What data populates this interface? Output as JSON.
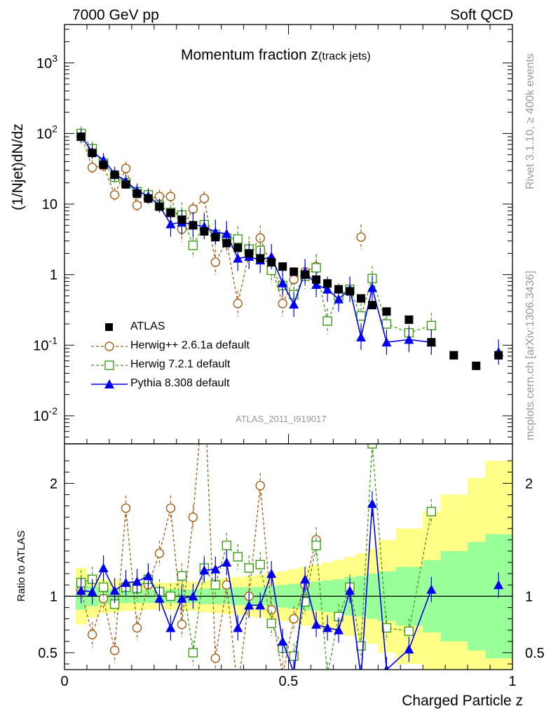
{
  "header": {
    "left": "7000 GeV pp",
    "right": "Soft QCD"
  },
  "title": {
    "main": "Momentum fraction z",
    "sub": "(track jets)"
  },
  "side_labels": {
    "rivet": "Rivet 3.1.10, ≥ 400k events",
    "site": "mcplots.cern.ch [arXiv:1306.3436]"
  },
  "watermark": "ATLAS_2011_I919017",
  "axes": {
    "ylabel_main": "(1/Njet)dN/dz",
    "ylabel_ratio": "Ratio to ATLAS",
    "xlabel": "Charged Particle z"
  },
  "colors": {
    "atlas": "#000000",
    "herwigpp": "#a35c14",
    "herwig7": "#3f9a1a",
    "pythia": "#0000ee",
    "band_outer": "#ffff88",
    "band_inner": "#99ff99"
  },
  "legend": [
    {
      "key": "atlas",
      "label": "ATLAS"
    },
    {
      "key": "herwigpp",
      "label": "Herwig++ 2.6.1a default"
    },
    {
      "key": "herwig7",
      "label": "Herwig 7.2.1 default"
    },
    {
      "key": "pythia",
      "label": "Pythia 8.308 default"
    }
  ],
  "chart_data": [
    {
      "type": "scatter",
      "panel": "main",
      "title": "Momentum fraction z (track jets)",
      "xlabel": "Charged Particle z",
      "ylabel": "(1/Njet)dN/dz",
      "xlim": [
        0,
        1
      ],
      "ylim": [
        0.004,
        3500
      ],
      "yscale": "log",
      "xticks": [
        0,
        0.5,
        1
      ],
      "xtick_labels": [
        "0",
        "0.5",
        "1"
      ],
      "ytick_labels": [
        "10^-2",
        "10^-1",
        "1",
        "10",
        "10^2",
        "10^3"
      ],
      "x": [
        0.037,
        0.062,
        0.087,
        0.112,
        0.137,
        0.162,
        0.187,
        0.212,
        0.237,
        0.262,
        0.287,
        0.312,
        0.337,
        0.362,
        0.387,
        0.412,
        0.437,
        0.462,
        0.487,
        0.512,
        0.537,
        0.562,
        0.587,
        0.612,
        0.637,
        0.662,
        0.687,
        0.719,
        0.769,
        0.819,
        0.869,
        0.919,
        0.969
      ],
      "series": [
        {
          "name": "ATLAS",
          "values": [
            90,
            53,
            36,
            26,
            19,
            14,
            12,
            9.2,
            7.5,
            6.0,
            5.0,
            4.1,
            3.4,
            2.8,
            2.4,
            2.0,
            1.7,
            1.5,
            1.3,
            1.1,
            1.0,
            0.85,
            0.75,
            0.62,
            0.58,
            0.46,
            0.37,
            0.3,
            0.23,
            0.11,
            0.072,
            0.051,
            0.072
          ]
        },
        {
          "name": "Herwig++ 2.6.1a default",
          "values": [
            95,
            33,
            35,
            13.5,
            32,
            9.6,
            12,
            12.8,
            12.8,
            4.4,
            8.5,
            12,
            1.5,
            3.0,
            0.39,
            2.0,
            3.3,
            1.3,
            0.39,
            0.85,
            1.1,
            1.3,
            null,
            null,
            null,
            3.4,
            null,
            null,
            null,
            null,
            null,
            null,
            null
          ]
        },
        {
          "name": "Herwig 7.2.1 default",
          "values": [
            100,
            61,
            38,
            24,
            20,
            15,
            13.5,
            9.6,
            7.6,
            7.0,
            2.6,
            5.1,
            3.7,
            3.3,
            3.2,
            2.3,
            2.2,
            1.15,
            0.7,
            0.52,
            0.95,
            1.25,
            0.22,
            0.5,
            0.62,
            0.26,
            0.88,
            0.2,
            0.15,
            0.19,
            null,
            null,
            null
          ]
        },
        {
          "name": "Pythia 8.308 default",
          "values": [
            92,
            55,
            42,
            27,
            21,
            15.5,
            13,
            9.5,
            5.2,
            5.5,
            5.1,
            4.8,
            4.0,
            3.8,
            1.7,
            1.8,
            1.6,
            1.8,
            0.76,
            0.38,
            1.1,
            0.72,
            0.62,
            0.45,
            0.62,
            0.13,
            0.65,
            0.11,
            0.12,
            0.11,
            null,
            null,
            0.08
          ]
        }
      ]
    },
    {
      "type": "line",
      "panel": "ratio",
      "ylabel": "Ratio to ATLAS",
      "xlabel": "Charged Particle z",
      "xlim": [
        0,
        1
      ],
      "ylim": [
        0.35,
        2.35
      ],
      "yticks": [
        0.5,
        1,
        2
      ],
      "ytick_labels": [
        "0.5",
        "1",
        "2"
      ],
      "x": [
        0.037,
        0.062,
        0.087,
        0.112,
        0.137,
        0.162,
        0.187,
        0.212,
        0.237,
        0.262,
        0.287,
        0.312,
        0.337,
        0.362,
        0.387,
        0.412,
        0.437,
        0.462,
        0.487,
        0.512,
        0.537,
        0.562,
        0.587,
        0.612,
        0.637,
        0.662,
        0.687,
        0.719,
        0.769,
        0.819,
        0.869,
        0.919,
        0.969
      ],
      "series": [
        {
          "name": "Herwig++ 2.6.1a default",
          "values": [
            1.05,
            0.66,
            0.98,
            0.52,
            1.78,
            0.72,
            1.1,
            1.38,
            1.78,
            0.75,
            1.7,
            2.9,
            0.45,
            1.1,
            0.16,
            1.0,
            1.98,
            0.88,
            0.3,
            0.8,
            1.1,
            1.5,
            null,
            null,
            null,
            null,
            null,
            null,
            null,
            null,
            null,
            null,
            null
          ]
        },
        {
          "name": "Herwig 7.2.1 default",
          "values": [
            1.12,
            1.15,
            1.08,
            0.93,
            1.08,
            1.07,
            1.15,
            1.04,
            1.0,
            1.18,
            0.5,
            1.25,
            1.1,
            1.45,
            1.35,
            1.25,
            1.28,
            0.76,
            0.54,
            0.47,
            0.95,
            1.45,
            0.3,
            0.82,
            1.08,
            0.56,
            2.35,
            0.72,
            0.69,
            1.75,
            null,
            null,
            null
          ]
        },
        {
          "name": "Pythia 8.308 default",
          "values": [
            1.05,
            1.04,
            1.25,
            1.05,
            1.12,
            1.13,
            1.18,
            0.98,
            0.72,
            0.98,
            1.0,
            1.23,
            1.24,
            1.3,
            0.72,
            0.92,
            0.92,
            1.2,
            0.6,
            0.32,
            1.15,
            0.75,
            0.72,
            0.7,
            1.05,
            0.28,
            1.82,
            0.35,
            0.53,
            1.06,
            null,
            null,
            1.1
          ]
        }
      ],
      "bands": {
        "x_edges": [
          0.025,
          0.05,
          0.075,
          0.1,
          0.125,
          0.15,
          0.175,
          0.2,
          0.225,
          0.25,
          0.275,
          0.3,
          0.325,
          0.35,
          0.375,
          0.4,
          0.425,
          0.45,
          0.475,
          0.5,
          0.525,
          0.55,
          0.575,
          0.6,
          0.625,
          0.65,
          0.675,
          0.7,
          0.74,
          0.8,
          0.84,
          0.9,
          0.94,
          1.0
        ],
        "inner": [
          0.12,
          0.09,
          0.07,
          0.06,
          0.06,
          0.06,
          0.06,
          0.06,
          0.06,
          0.06,
          0.06,
          0.07,
          0.07,
          0.07,
          0.08,
          0.08,
          0.08,
          0.09,
          0.1,
          0.11,
          0.12,
          0.13,
          0.14,
          0.15,
          0.17,
          0.18,
          0.2,
          0.22,
          0.26,
          0.32,
          0.4,
          0.48,
          0.55
        ],
        "outer": [
          0.25,
          0.19,
          0.15,
          0.14,
          0.13,
          0.13,
          0.12,
          0.12,
          0.12,
          0.13,
          0.13,
          0.14,
          0.15,
          0.16,
          0.17,
          0.18,
          0.19,
          0.2,
          0.22,
          0.24,
          0.26,
          0.28,
          0.3,
          0.32,
          0.35,
          0.38,
          0.42,
          0.5,
          0.6,
          0.75,
          0.9,
          1.05,
          1.2
        ]
      }
    }
  ]
}
